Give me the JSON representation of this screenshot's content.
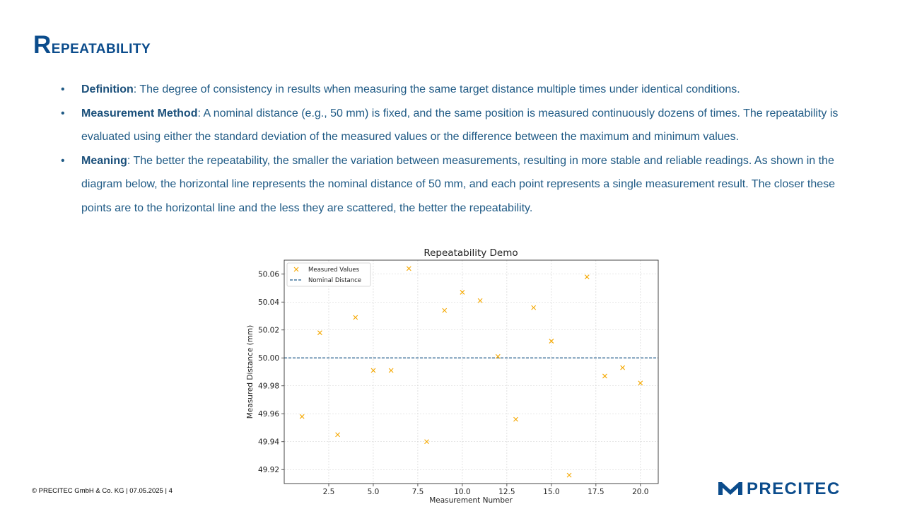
{
  "slide": {
    "title": "Repeatability",
    "title_cap": "R",
    "title_rest": "epeatability",
    "bullets": [
      {
        "term": "Definition",
        "text": ": The degree of consistency in results when measuring the same target distance multiple times under identical conditions."
      },
      {
        "term": "Measurement Method",
        "text": ": A nominal distance (e.g., 50 mm) is fixed, and the same position is measured continuously dozens of times. The repeatability is evaluated using either the standard deviation of the measured values or the difference between the maximum and minimum values."
      },
      {
        "term": "Meaning",
        "text": ": The better the repeatability, the smaller the variation between measurements, resulting in more stable and reliable readings. As shown in the diagram below, the horizontal line represents the nominal distance of 50 mm, and each point represents a single measurement result. The closer these points are to the horizontal line and the less they are scattered, the better the repeatability."
      }
    ]
  },
  "footer": {
    "text": "© PRECITEC GmbH & Co. KG | 07.05.2025 | 4"
  },
  "logo": {
    "text": "PRECITEC",
    "color": "#0b4c8c"
  },
  "chart_data": {
    "type": "scatter",
    "title": "Repeatability Demo",
    "xlabel": "Measurement Number",
    "ylabel": "Measured Distance (mm)",
    "xlim": [
      0,
      21
    ],
    "ylim": [
      49.91,
      50.07
    ],
    "xticks": [
      2.5,
      5.0,
      7.5,
      10.0,
      12.5,
      15.0,
      17.5,
      20.0
    ],
    "xtick_labels": [
      "2.5",
      "5.0",
      "7.5",
      "10.0",
      "12.5",
      "15.0",
      "17.5",
      "20.0"
    ],
    "yticks": [
      49.92,
      49.94,
      49.96,
      49.98,
      50.0,
      50.02,
      50.04,
      50.06
    ],
    "ytick_labels": [
      "49.92",
      "49.94",
      "49.96",
      "49.98",
      "50.00",
      "50.02",
      "50.04",
      "50.06"
    ],
    "grid": true,
    "legend_position": "top-left",
    "series": [
      {
        "name": "Measured Values",
        "marker": "x",
        "color": "#f5a800",
        "x": [
          1,
          2,
          3,
          4,
          5,
          6,
          7,
          8,
          9,
          10,
          11,
          12,
          13,
          14,
          15,
          16,
          17,
          18,
          19,
          20
        ],
        "y": [
          49.958,
          50.018,
          49.945,
          50.029,
          49.991,
          49.991,
          50.064,
          49.94,
          50.034,
          50.047,
          50.041,
          50.001,
          49.956,
          50.036,
          50.012,
          49.916,
          50.058,
          49.987,
          49.993,
          49.982
        ]
      }
    ],
    "reference_lines": [
      {
        "name": "Nominal Distance",
        "y": 50.0,
        "style": "dashed",
        "color": "#1f5a8a"
      }
    ]
  }
}
